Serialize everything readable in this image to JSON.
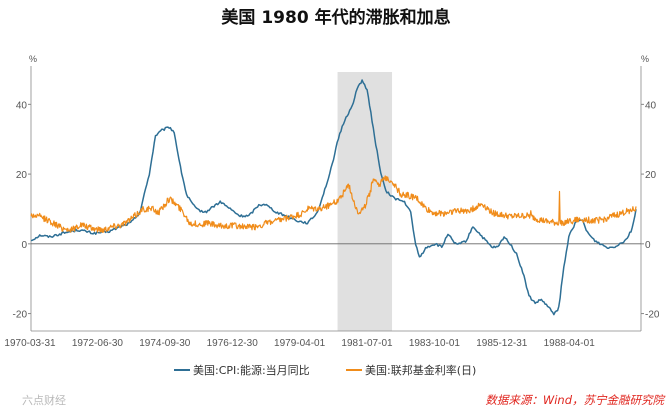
{
  "chart_data": {
    "type": "line",
    "title": "美国 1980 年代的滞胀和加息",
    "y_unit_left": "%",
    "y_unit_right": "%",
    "ylim": [
      -25,
      51
    ],
    "y_ticks": [
      -20,
      0,
      20,
      40
    ],
    "x_ticks": [
      "1970-03-31",
      "1972-06-30",
      "1974-09-30",
      "1976-12-30",
      "1979-04-01",
      "1981-07-01",
      "1983-10-01",
      "1985-12-31",
      "1988-04-01"
    ],
    "x_range": [
      1970.0,
      1989.6
    ],
    "shaded_region": [
      1979.85,
      1981.6
    ],
    "series": [
      {
        "name": "美国:CPI:能源:当月同比",
        "color": "#2e6f95",
        "noise": 0.35,
        "points": [
          [
            1970.0,
            1
          ],
          [
            1970.3,
            2.5
          ],
          [
            1970.6,
            2
          ],
          [
            1971.0,
            3
          ],
          [
            1971.5,
            4
          ],
          [
            1971.8,
            3.5
          ],
          [
            1972.0,
            3
          ],
          [
            1972.5,
            3.5
          ],
          [
            1972.9,
            5
          ],
          [
            1973.2,
            6
          ],
          [
            1973.5,
            9
          ],
          [
            1973.8,
            20
          ],
          [
            1974.0,
            31
          ],
          [
            1974.2,
            32.5
          ],
          [
            1974.45,
            33.5
          ],
          [
            1974.6,
            32
          ],
          [
            1974.8,
            22
          ],
          [
            1975.0,
            14
          ],
          [
            1975.3,
            10
          ],
          [
            1975.6,
            9
          ],
          [
            1975.9,
            11
          ],
          [
            1976.1,
            12
          ],
          [
            1976.4,
            10
          ],
          [
            1976.7,
            8
          ],
          [
            1977.0,
            8
          ],
          [
            1977.3,
            11
          ],
          [
            1977.5,
            11.5
          ],
          [
            1977.9,
            9
          ],
          [
            1978.2,
            8
          ],
          [
            1978.6,
            6.5
          ],
          [
            1978.9,
            6
          ],
          [
            1979.2,
            9
          ],
          [
            1979.6,
            20
          ],
          [
            1979.9,
            31
          ],
          [
            1980.1,
            36
          ],
          [
            1980.3,
            39
          ],
          [
            1980.5,
            45
          ],
          [
            1980.65,
            47
          ],
          [
            1980.8,
            44
          ],
          [
            1981.0,
            33
          ],
          [
            1981.2,
            22
          ],
          [
            1981.4,
            15
          ],
          [
            1981.7,
            13
          ],
          [
            1982.0,
            12
          ],
          [
            1982.2,
            9
          ],
          [
            1982.35,
            0
          ],
          [
            1982.5,
            -4
          ],
          [
            1982.7,
            -1
          ],
          [
            1983.0,
            0
          ],
          [
            1983.2,
            -1
          ],
          [
            1983.4,
            3
          ],
          [
            1983.6,
            0
          ],
          [
            1983.8,
            0
          ],
          [
            1984.0,
            1
          ],
          [
            1984.2,
            5
          ],
          [
            1984.4,
            3
          ],
          [
            1984.6,
            1
          ],
          [
            1984.8,
            -1
          ],
          [
            1985.0,
            -1
          ],
          [
            1985.2,
            2
          ],
          [
            1985.4,
            0
          ],
          [
            1985.6,
            -3
          ],
          [
            1985.8,
            -8
          ],
          [
            1986.0,
            -15
          ],
          [
            1986.2,
            -17
          ],
          [
            1986.4,
            -16
          ],
          [
            1986.6,
            -18
          ],
          [
            1986.8,
            -20
          ],
          [
            1986.95,
            -19
          ],
          [
            1987.1,
            -8
          ],
          [
            1987.3,
            3
          ],
          [
            1987.5,
            6
          ],
          [
            1987.7,
            7
          ],
          [
            1987.9,
            3
          ],
          [
            1988.1,
            1
          ],
          [
            1988.3,
            0
          ],
          [
            1988.5,
            -1
          ],
          [
            1988.7,
            -1
          ],
          [
            1988.9,
            0
          ],
          [
            1989.1,
            1
          ],
          [
            1989.3,
            4
          ],
          [
            1989.45,
            10
          ]
        ]
      },
      {
        "name": "美国:联邦基金利率(日)",
        "color": "#f08c1a",
        "noise": 0.9,
        "points": [
          [
            1970.0,
            8.2
          ],
          [
            1970.3,
            7.8
          ],
          [
            1970.6,
            6.5
          ],
          [
            1971.0,
            4.5
          ],
          [
            1971.3,
            4
          ],
          [
            1971.6,
            5.5
          ],
          [
            1971.9,
            4.5
          ],
          [
            1972.3,
            4
          ],
          [
            1972.6,
            5
          ],
          [
            1972.9,
            5.5
          ],
          [
            1973.2,
            7
          ],
          [
            1973.6,
            10
          ],
          [
            1973.9,
            10
          ],
          [
            1974.1,
            9
          ],
          [
            1974.45,
            13
          ],
          [
            1974.7,
            11
          ],
          [
            1974.9,
            9
          ],
          [
            1975.1,
            6
          ],
          [
            1975.4,
            5.5
          ],
          [
            1975.7,
            6
          ],
          [
            1976.0,
            5
          ],
          [
            1976.5,
            5.3
          ],
          [
            1976.9,
            4.8
          ],
          [
            1977.2,
            4.8
          ],
          [
            1977.6,
            6
          ],
          [
            1977.9,
            6.5
          ],
          [
            1978.3,
            7.5
          ],
          [
            1978.7,
            8.5
          ],
          [
            1978.9,
            10
          ],
          [
            1979.3,
            10
          ],
          [
            1979.8,
            12
          ],
          [
            1980.0,
            14
          ],
          [
            1980.2,
            17
          ],
          [
            1980.35,
            13
          ],
          [
            1980.5,
            9
          ],
          [
            1980.7,
            10
          ],
          [
            1980.9,
            15
          ],
          [
            1981.0,
            19
          ],
          [
            1981.2,
            17
          ],
          [
            1981.4,
            19
          ],
          [
            1981.6,
            18
          ],
          [
            1981.9,
            14
          ],
          [
            1982.1,
            14
          ],
          [
            1982.4,
            13
          ],
          [
            1982.7,
            10
          ],
          [
            1982.9,
            9
          ],
          [
            1983.2,
            8.6
          ],
          [
            1983.6,
            9.5
          ],
          [
            1983.9,
            9.4
          ],
          [
            1984.2,
            10
          ],
          [
            1984.5,
            11.5
          ],
          [
            1984.8,
            9
          ],
          [
            1985.0,
            8.5
          ],
          [
            1985.4,
            7.8
          ],
          [
            1985.8,
            8
          ],
          [
            1986.0,
            8
          ],
          [
            1986.3,
            7
          ],
          [
            1986.6,
            6.3
          ],
          [
            1986.9,
            6
          ],
          [
            1987.2,
            6.2
          ],
          [
            1987.5,
            6.8
          ],
          [
            1987.8,
            7
          ],
          [
            1988.1,
            6.6
          ],
          [
            1988.4,
            7
          ],
          [
            1988.7,
            8
          ],
          [
            1988.9,
            8.5
          ],
          [
            1989.2,
            9.5
          ],
          [
            1989.45,
            10
          ]
        ],
        "spikes": [
          [
            1986.05,
            9.5
          ],
          [
            1986.97,
            15
          ]
        ]
      }
    ],
    "legend": [
      "美国:CPI:能源:当月同比",
      "美国:联邦基金利率(日)"
    ],
    "source": "数据来源：Wind，苏宁金融研究院",
    "watermark": "六点财经"
  }
}
